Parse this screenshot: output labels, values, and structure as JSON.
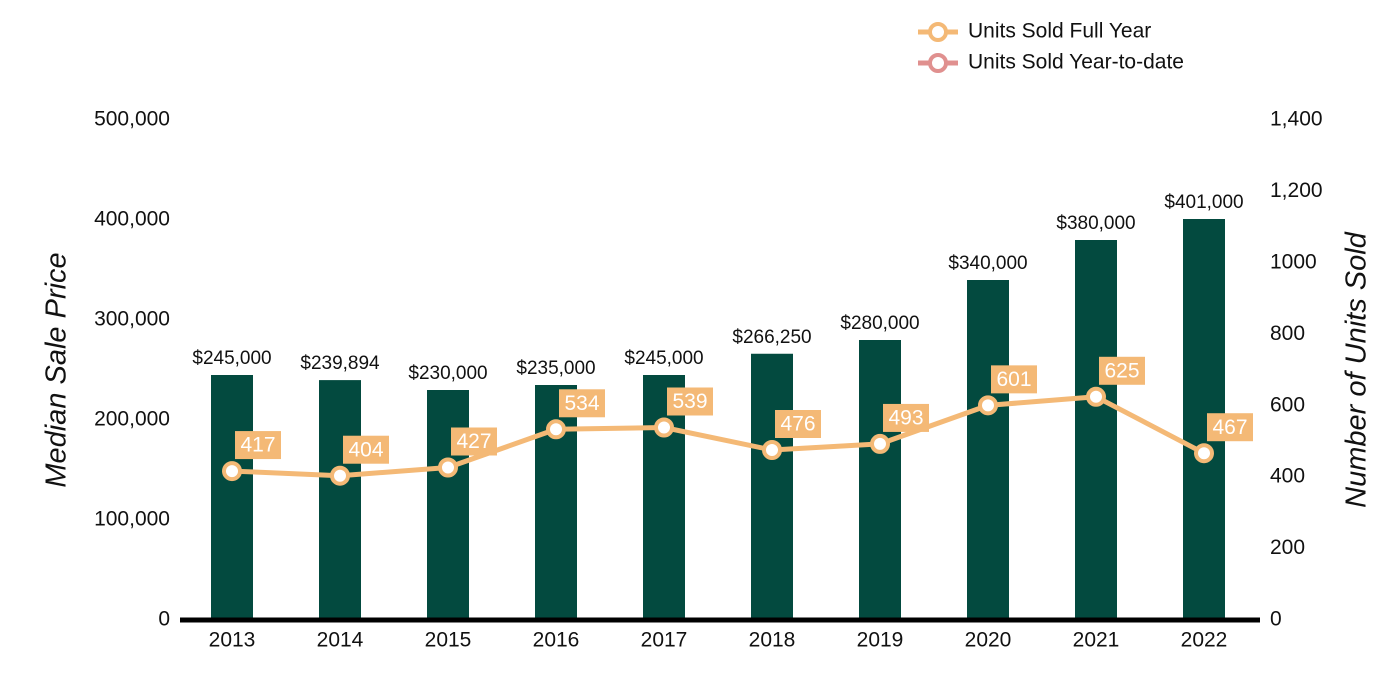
{
  "chart_data": {
    "type": "bar",
    "categories": [
      "2013",
      "2014",
      "2015",
      "2016",
      "2017",
      "2018",
      "2019",
      "2020",
      "2021",
      "2022"
    ],
    "series": [
      {
        "type": "bar",
        "color": "#034a3f",
        "values": [
          245000,
          239894,
          230000,
          235000,
          245000,
          266250,
          280000,
          340000,
          380000,
          401000
        ],
        "value_labels": [
          "$245,000",
          "$239,894",
          "$230,000",
          "$235,000",
          "$245,000",
          "$266,250",
          "$280,000",
          "$340,000",
          "$380,000",
          "$401,000"
        ]
      },
      {
        "type": "line",
        "name": "Units Sold Full Year",
        "color": "#f4b976",
        "axis": "y2",
        "values": [
          417,
          404,
          427,
          534,
          539,
          476,
          493,
          601,
          625,
          467
        ]
      },
      {
        "type": "line",
        "name": "Units Sold Year-to-date",
        "color": "#e0908f",
        "axis": "y2",
        "values": [
          null,
          null,
          null,
          null,
          null,
          null,
          null,
          null,
          null,
          null
        ]
      }
    ],
    "ylabel": "Median Sale Price",
    "y2label": "Number of Units Sold",
    "ylim": [
      0,
      500000
    ],
    "yticks": [
      0,
      {
        "value": 100000,
        "label": "100,000"
      },
      {
        "value": 200000,
        "label": "200,000"
      },
      {
        "value": 300000,
        "label": "300,000"
      },
      {
        "value": 400000,
        "label": "400,000"
      },
      {
        "value": 500000,
        "label": "500,000"
      }
    ],
    "y2lim": [
      0,
      1400
    ],
    "y2ticks": [
      0,
      200,
      400,
      600,
      800,
      1000,
      {
        "value": 1200,
        "label": "1,200"
      },
      {
        "value": 1400,
        "label": "1,400"
      }
    ],
    "legend": "top-right"
  }
}
